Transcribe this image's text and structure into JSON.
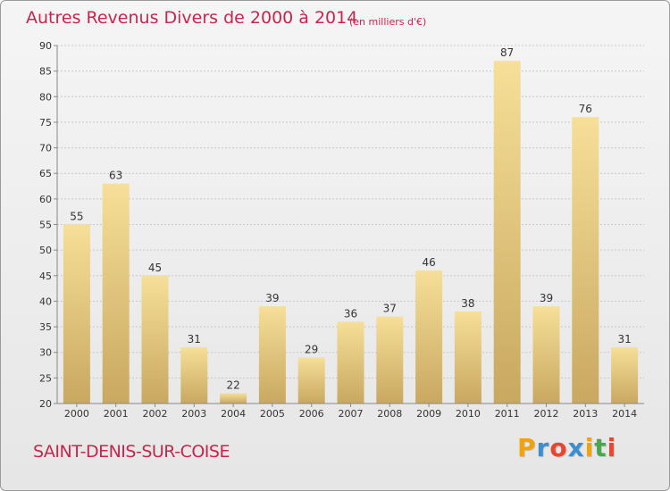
{
  "header": {
    "title": "Autres Revenus Divers de 2000 à 2014",
    "subtitle": "(en milliers d'€)"
  },
  "footer": {
    "commune": "SAINT-DENIS-SUR-COISE",
    "logo_letters": [
      "P",
      "r",
      "o",
      "x",
      "i",
      "t",
      "i"
    ],
    "logo_colors": [
      "#f0a30a",
      "#3b8fd0",
      "#e8462e",
      "#3b8fd0",
      "#f0a30a",
      "#4aa84a",
      "#e8462e"
    ]
  },
  "colors": {
    "bar_light": "#f6df98",
    "bar_dark": "#c9a860",
    "grid": "#c8c8c8",
    "text": "#333333",
    "accent": "#c4264f"
  },
  "chart_data": {
    "type": "bar",
    "categories": [
      "2000",
      "2001",
      "2002",
      "2003",
      "2004",
      "2005",
      "2006",
      "2007",
      "2008",
      "2009",
      "2010",
      "2011",
      "2012",
      "2013",
      "2014"
    ],
    "values": [
      55,
      63,
      45,
      31,
      22,
      39,
      29,
      36,
      37,
      46,
      38,
      87,
      39,
      76,
      31
    ],
    "data_labels": [
      "55",
      "63",
      "45",
      "31",
      "22",
      "39",
      "29",
      "36",
      "37",
      "46",
      "38",
      "87",
      "39",
      "76",
      "31"
    ],
    "title": "Autres Revenus Divers de 2000 à 2014",
    "subtitle": "(en milliers d'€)",
    "xlabel": "",
    "ylabel": "",
    "ylim": [
      20,
      90
    ],
    "yticks": [
      20,
      25,
      30,
      35,
      40,
      45,
      50,
      55,
      60,
      65,
      70,
      75,
      80,
      85,
      90
    ],
    "grid": true,
    "legend": "none"
  }
}
